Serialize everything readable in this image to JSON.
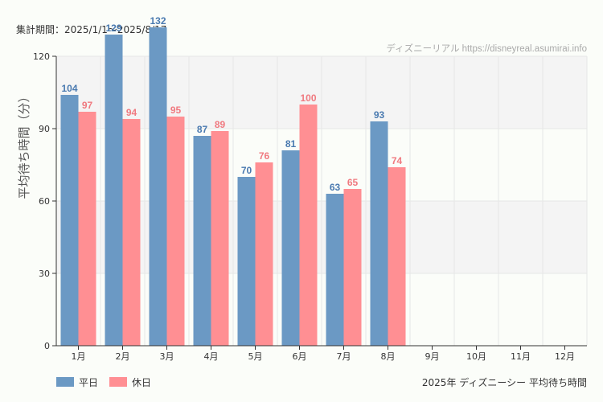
{
  "chart_data": {
    "type": "bar",
    "period_label": "集計期間：2025/1/1～2025/8/17",
    "watermark": "ディズニーリアル https://disneyreal.asumirai.info",
    "title": "2025年 ディズニーシー 平均待ち時間",
    "ylabel": "平均待ち時間（分）",
    "xlabel": "",
    "ylim": [
      0,
      120
    ],
    "yticks": [
      0,
      30,
      60,
      90,
      120
    ],
    "categories": [
      "1月",
      "2月",
      "3月",
      "4月",
      "5月",
      "6月",
      "7月",
      "8月",
      "9月",
      "10月",
      "11月",
      "12月"
    ],
    "series": [
      {
        "name": "平日",
        "color": "#6b99c4",
        "label_color": "#4a7ab0",
        "values": [
          104,
          129,
          132,
          87,
          70,
          81,
          63,
          93,
          null,
          null,
          null,
          null
        ]
      },
      {
        "name": "休日",
        "color": "#ff8f93",
        "label_color": "#f07a80",
        "values": [
          97,
          94,
          95,
          89,
          76,
          100,
          65,
          74,
          null,
          null,
          null,
          null
        ]
      }
    ],
    "grid": true,
    "legend_position": "bottom-left"
  }
}
